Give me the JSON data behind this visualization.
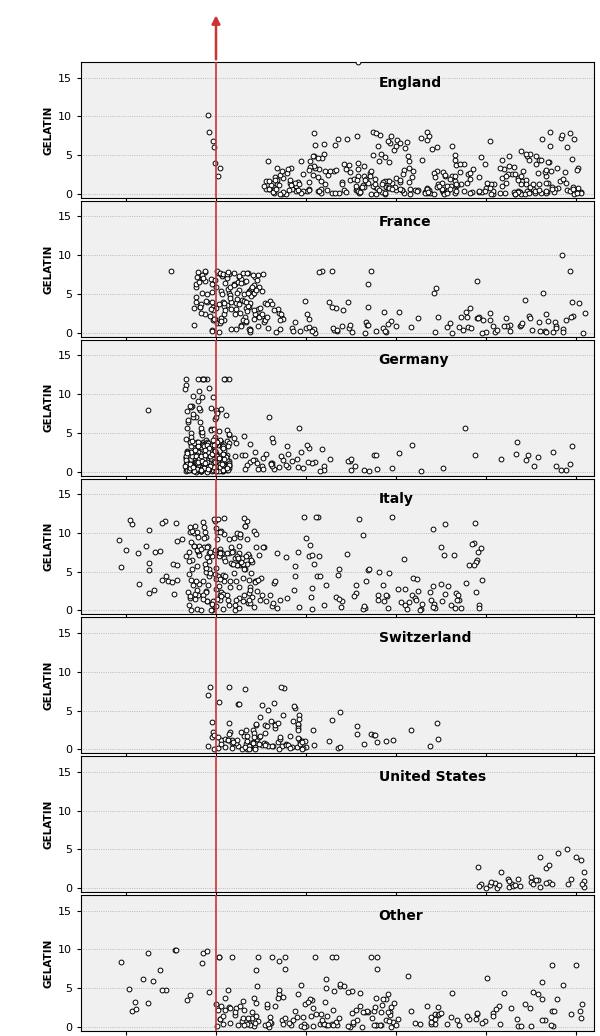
{
  "countries": [
    "England",
    "France",
    "Germany",
    "Italy",
    "Switzerland",
    "United States",
    "Other"
  ],
  "xlim": [
    1350,
    1920
  ],
  "ylim": [
    -0.5,
    17
  ],
  "yticks": [
    0,
    5,
    10,
    15
  ],
  "xticks": [
    1400,
    1500,
    1600,
    1700,
    1800,
    1900
  ],
  "vline_x": 1500,
  "ylabel": "GELATIN",
  "ax_bg": "#f0f0f0",
  "marker_size": 12,
  "marker_color": "black",
  "marker_facecolor": "white",
  "marker_lw": 0.7,
  "vline_color": "#cc3333",
  "vline_lw": 1.2,
  "arrow_color": "#cc3333",
  "grid_color": "#aaaaaa",
  "grid_style": "dotted"
}
